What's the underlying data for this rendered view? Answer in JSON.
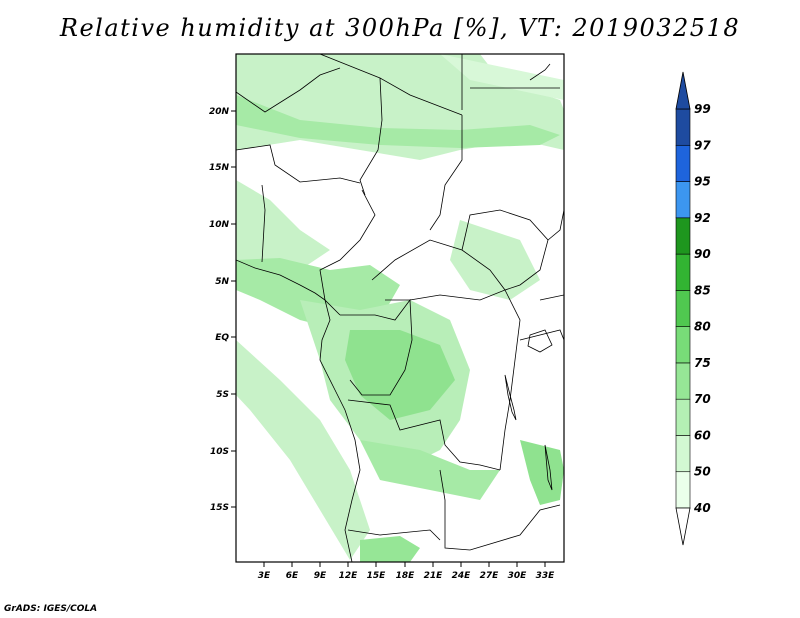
{
  "title": "Relative humidity at 300hPa [%], VT: 2019032518",
  "credit": "GrADS: IGES/COLA",
  "map": {
    "lat_labels": [
      "20N",
      "15N",
      "10N",
      "5N",
      "EQ",
      "5S",
      "10S",
      "15S"
    ],
    "lon_labels": [
      "3E",
      "6E",
      "9E",
      "12E",
      "15E",
      "18E",
      "21E",
      "24E",
      "27E",
      "30E",
      "33E"
    ]
  },
  "colorbar": {
    "levels": [
      "40",
      "50",
      "60",
      "70",
      "75",
      "80",
      "85",
      "90",
      "92",
      "95",
      "97",
      "99"
    ],
    "colors": [
      "#ffffff",
      "#eaffea",
      "#d2f8d2",
      "#b4f0b4",
      "#96e696",
      "#78dc78",
      "#50c850",
      "#32b432",
      "#1e961e",
      "#3c96f0",
      "#1e64dc",
      "#1e4ba0"
    ]
  }
}
